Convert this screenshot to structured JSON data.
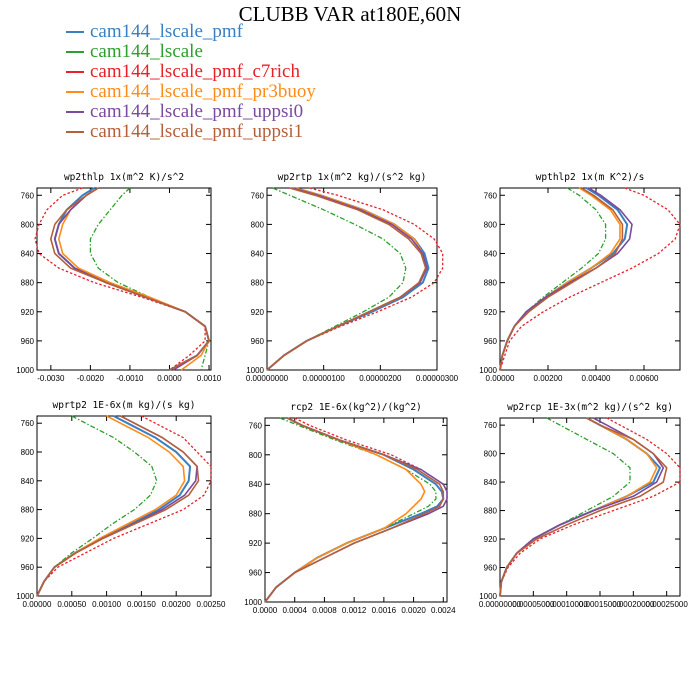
{
  "title": "CLUBB VAR at180E,60N",
  "legend": [
    {
      "name": "cam144_lscale_pmf",
      "color": "#3a80c0"
    },
    {
      "name": "cam144_lscale",
      "color": "#2ca02c"
    },
    {
      "name": "cam144_lscale_pmf_c7rich",
      "color": "#e8202a"
    },
    {
      "name": "cam144_lscale_pmf_pr3buoy",
      "color": "#ff8c1a"
    },
    {
      "name": "cam144_lscale_pmf_uppsi0",
      "color": "#7a4a9e"
    },
    {
      "name": "cam144_lscale_pmf_uppsi1",
      "color": "#b5603a"
    }
  ],
  "chart_data": [
    {
      "type": "line",
      "title": "wp2thlp  1x(m^2 K)/s^2",
      "ylim": [
        1000,
        750
      ],
      "yticks": [
        "760",
        "800",
        "840",
        "880",
        "920",
        "960",
        "1000"
      ],
      "xlim": [
        -0.00335,
        0.00105
      ],
      "xticks": [
        "-0.0030",
        "-0.0020",
        "-0.0010",
        "0.0000",
        "0.0010"
      ],
      "y": [
        750,
        760,
        780,
        800,
        820,
        840,
        860,
        880,
        900,
        920,
        940,
        960,
        980,
        1000
      ],
      "series": [
        {
          "values": [
            -0.0019,
            -0.0022,
            -0.0026,
            -0.0028,
            -0.0029,
            -0.0028,
            -0.0024,
            -0.0016,
            -0.0006,
            0.0004,
            0.0009,
            0.001,
            0.0007,
            0.0
          ]
        },
        {
          "values": [
            -0.001,
            -0.0012,
            -0.0015,
            -0.0018,
            -0.002,
            -0.002,
            -0.0018,
            -0.0013,
            -0.0005,
            0.0004,
            0.0009,
            0.001,
            0.0009,
            0.0008
          ]
        },
        {
          "values": [
            -0.0022,
            -0.0027,
            -0.0031,
            -0.0033,
            -0.0034,
            -0.0033,
            -0.0028,
            -0.0019,
            -0.0007,
            0.0004,
            0.0009,
            0.0009,
            0.0005,
            0.0
          ]
        },
        {
          "values": [
            -0.0018,
            -0.0021,
            -0.0025,
            -0.0027,
            -0.0028,
            -0.0027,
            -0.0023,
            -0.0015,
            -0.0005,
            0.0004,
            0.0009,
            0.001,
            0.0008,
            0.0003
          ]
        },
        {
          "values": [
            -0.0018,
            -0.0021,
            -0.0025,
            -0.0028,
            -0.0029,
            -0.0028,
            -0.0024,
            -0.0016,
            -0.0006,
            0.0004,
            0.0009,
            0.001,
            0.0007,
            0.0001
          ]
        },
        {
          "values": [
            -0.0018,
            -0.0021,
            -0.0026,
            -0.0029,
            -0.003,
            -0.0029,
            -0.0025,
            -0.0016,
            -0.0006,
            0.0004,
            0.0009,
            0.001,
            0.0007,
            0.0
          ]
        }
      ]
    },
    {
      "type": "line",
      "title": "wp2rtp  1x(m^2 kg)/(s^2 kg)",
      "ylim": [
        1000,
        750
      ],
      "yticks": [
        "760",
        "800",
        "840",
        "880",
        "920",
        "960",
        "1000"
      ],
      "xlim": [
        0,
        3e-06
      ],
      "xticks": [
        "0.00000000",
        "0.00000100",
        "0.00000200",
        "0.00000300"
      ],
      "y": [
        750,
        760,
        780,
        800,
        820,
        840,
        860,
        880,
        900,
        920,
        940,
        960,
        980,
        1000
      ],
      "series": [
        {
          "values": [
            5e-07,
            9.5e-07,
            1.7e-06,
            2.25e-06,
            2.6e-06,
            2.78e-06,
            2.85e-06,
            2.75e-06,
            2.4e-06,
            1.85e-06,
            1.25e-06,
            7e-07,
            3e-07,
            0.0
          ]
        },
        {
          "values": [
            1e-07,
            4e-07,
            1e-06,
            1.55e-06,
            2.05e-06,
            2.35e-06,
            2.45e-06,
            2.4e-06,
            2.15e-06,
            1.7e-06,
            1.2e-06,
            7e-07,
            3e-07,
            0.0
          ]
        },
        {
          "values": [
            7.5e-07,
            1.25e-06,
            2.05e-06,
            2.6e-06,
            2.95e-06,
            3.1e-06,
            3.1e-06,
            2.95e-06,
            2.55e-06,
            1.95e-06,
            1.3e-06,
            7e-07,
            3e-07,
            0.0
          ]
        },
        {
          "values": [
            5e-07,
            9.5e-07,
            1.7e-06,
            2.25e-06,
            2.6e-06,
            2.75e-06,
            2.8e-06,
            2.7e-06,
            2.35e-06,
            1.8e-06,
            1.25e-06,
            7e-07,
            3e-07,
            0.0
          ]
        },
        {
          "values": [
            4.5e-07,
            9e-07,
            1.65e-06,
            2.2e-06,
            2.55e-06,
            2.75e-06,
            2.82e-06,
            2.7e-06,
            2.35e-06,
            1.8e-06,
            1.25e-06,
            7e-07,
            3e-07,
            0.0
          ]
        },
        {
          "values": [
            4e-07,
            8.5e-07,
            1.6e-06,
            2.15e-06,
            2.5e-06,
            2.72e-06,
            2.8e-06,
            2.68e-06,
            2.35e-06,
            1.8e-06,
            1.25e-06,
            7e-07,
            3e-07,
            0.0
          ]
        }
      ]
    },
    {
      "type": "line",
      "title": "wpthlp2  1x(m K^2)/s",
      "ylim": [
        1000,
        750
      ],
      "yticks": [
        "760",
        "800",
        "840",
        "880",
        "920",
        "960",
        "1000"
      ],
      "xlim": [
        0,
        0.0075
      ],
      "xticks": [
        "0.00000",
        "0.00200",
        "0.00400",
        "0.00600"
      ],
      "y": [
        750,
        760,
        780,
        800,
        820,
        840,
        860,
        880,
        900,
        920,
        940,
        960,
        980,
        1000
      ],
      "series": [
        {
          "values": [
            0.0036,
            0.0041,
            0.0049,
            0.0053,
            0.0052,
            0.0047,
            0.0038,
            0.0028,
            0.0019,
            0.0011,
            0.0006,
            0.0003,
            0.0001,
            0.0
          ]
        },
        {
          "values": [
            0.0028,
            0.0033,
            0.004,
            0.0044,
            0.0044,
            0.0041,
            0.0034,
            0.0026,
            0.0018,
            0.0011,
            0.0006,
            0.0003,
            0.0001,
            0.0
          ]
        },
        {
          "values": [
            0.0052,
            0.006,
            0.007,
            0.0075,
            0.0073,
            0.0066,
            0.0055,
            0.0042,
            0.0029,
            0.0018,
            0.0009,
            0.0004,
            0.0002,
            0.0
          ]
        },
        {
          "values": [
            0.0033,
            0.0038,
            0.0046,
            0.005,
            0.005,
            0.0046,
            0.0038,
            0.0028,
            0.0019,
            0.0011,
            0.0006,
            0.0003,
            0.0001,
            0.0
          ]
        },
        {
          "values": [
            0.0037,
            0.0042,
            0.005,
            0.0055,
            0.0054,
            0.0049,
            0.004,
            0.0029,
            0.0019,
            0.0011,
            0.0006,
            0.0003,
            0.0001,
            0.0
          ]
        },
        {
          "values": [
            0.0034,
            0.0039,
            0.0047,
            0.0051,
            0.0051,
            0.0048,
            0.004,
            0.003,
            0.002,
            0.0012,
            0.0006,
            0.0003,
            0.0001,
            0.0
          ]
        }
      ]
    },
    {
      "type": "line",
      "title": "wprtp2  1E-6x(m kg)/(s kg)",
      "ylim": [
        1000,
        750
      ],
      "yticks": [
        "760",
        "800",
        "840",
        "880",
        "920",
        "960",
        "1000"
      ],
      "xlim": [
        0,
        0.0025
      ],
      "xticks": [
        "0.00000",
        "0.00050",
        "0.00100",
        "0.00150",
        "0.00200",
        "0.00250"
      ],
      "y": [
        750,
        760,
        780,
        800,
        820,
        840,
        860,
        880,
        900,
        920,
        940,
        960,
        980,
        1000
      ],
      "series": [
        {
          "values": [
            0.0011,
            0.0013,
            0.0017,
            0.002,
            0.0022,
            0.00218,
            0.00205,
            0.00175,
            0.00135,
            0.00092,
            0.00055,
            0.00025,
            0.0001,
            0.0
          ]
        },
        {
          "values": [
            0.0005,
            0.0007,
            0.0011,
            0.0014,
            0.00165,
            0.00172,
            0.00163,
            0.0014,
            0.00108,
            0.0008,
            0.0005,
            0.00025,
            0.0001,
            0.0
          ]
        },
        {
          "values": [
            0.0015,
            0.0017,
            0.0021,
            0.0023,
            0.0025,
            0.0025,
            0.0024,
            0.0021,
            0.0016,
            0.0011,
            0.0007,
            0.0003,
            0.0001,
            0.0
          ]
        },
        {
          "values": [
            0.001,
            0.0012,
            0.0016,
            0.0019,
            0.0021,
            0.00212,
            0.002,
            0.0017,
            0.0013,
            0.0009,
            0.00055,
            0.00025,
            0.0001,
            0.0
          ]
        },
        {
          "values": [
            0.0012,
            0.0014,
            0.0018,
            0.0021,
            0.0023,
            0.00228,
            0.00212,
            0.0018,
            0.00138,
            0.00094,
            0.00056,
            0.00025,
            0.0001,
            0.0
          ]
        },
        {
          "values": [
            0.0012,
            0.0014,
            0.0018,
            0.0021,
            0.0023,
            0.00232,
            0.00218,
            0.00185,
            0.0014,
            0.00095,
            0.00056,
            0.00025,
            0.0001,
            0.0
          ]
        }
      ]
    },
    {
      "type": "line",
      "title": "rcp2  1E-6x(kg^2)/(kg^2)",
      "ylim": [
        1000,
        750
      ],
      "yticks": [
        "760",
        "800",
        "840",
        "880",
        "920",
        "960",
        "1000"
      ],
      "xlim": [
        0,
        0.00245
      ],
      "xticks": [
        "0.0000",
        "0.0004",
        "0.0008",
        "0.0012",
        "0.0016",
        "0.0020",
        "0.0024"
      ],
      "y": [
        750,
        760,
        780,
        800,
        820,
        840,
        850,
        860,
        870,
        880,
        900,
        920,
        940,
        960,
        980,
        1000
      ],
      "series": [
        {
          "values": [
            0.0003,
            0.0005,
            0.001,
            0.0016,
            0.002,
            0.0023,
            0.00238,
            0.0024,
            0.00232,
            0.0021,
            0.0016,
            0.0011,
            0.0007,
            0.0004,
            0.00015,
            0.0
          ]
        },
        {
          "values": [
            0.0002,
            0.00045,
            0.00095,
            0.0015,
            0.0019,
            0.00222,
            0.0023,
            0.0023,
            0.0022,
            0.002,
            0.0016,
            0.0011,
            0.0007,
            0.0004,
            0.00015,
            0.0
          ]
        },
        {
          "values": [
            0.0004,
            0.0006,
            0.0011,
            0.0017,
            0.0021,
            0.0024,
            0.00245,
            0.00245,
            0.0024,
            0.0022,
            0.0017,
            0.0012,
            0.0008,
            0.0004,
            0.00015,
            0.0
          ]
        },
        {
          "values": [
            0.0003,
            0.0005,
            0.001,
            0.0015,
            0.0019,
            0.0021,
            0.00215,
            0.0021,
            0.002,
            0.0019,
            0.0016,
            0.0011,
            0.0007,
            0.0004,
            0.00015,
            0.0
          ]
        },
        {
          "values": [
            0.0003,
            0.0005,
            0.001,
            0.0016,
            0.0021,
            0.0024,
            0.00245,
            0.00245,
            0.0024,
            0.0022,
            0.0017,
            0.0012,
            0.0008,
            0.0004,
            0.00015,
            0.0
          ]
        },
        {
          "values": [
            0.0003,
            0.0005,
            0.001,
            0.0016,
            0.00205,
            0.00235,
            0.0024,
            0.0024,
            0.00235,
            0.00215,
            0.0017,
            0.0012,
            0.0008,
            0.0004,
            0.00015,
            0.0
          ]
        }
      ]
    },
    {
      "type": "line",
      "title": "wp2rcp  1E-3x(m^2 kg)/(s^2 kg)",
      "ylim": [
        1000,
        750
      ],
      "yticks": [
        "760",
        "800",
        "840",
        "880",
        "920",
        "960",
        "1000"
      ],
      "xlim": [
        0,
        0.00027
      ],
      "xticks": [
        "0.00000000",
        "0.00005000",
        "0.00010000",
        "0.00015000",
        "0.00020000",
        "0.00025000"
      ],
      "y": [
        750,
        760,
        780,
        800,
        820,
        840,
        860,
        880,
        900,
        920,
        940,
        960,
        980,
        1000
      ],
      "series": [
        {
          "values": [
            0.00013,
            0.00015,
            0.00019,
            0.00022,
            0.00024,
            0.00023,
            0.00019,
            0.00014,
            9e-05,
            5e-05,
            2.5e-05,
            1e-05,
            2e-06,
            0.0
          ]
        },
        {
          "values": [
            7e-05,
            9e-05,
            0.00013,
            0.00017,
            0.000195,
            0.000195,
            0.00017,
            0.00013,
            9e-05,
            5e-05,
            2.5e-05,
            1e-05,
            2e-06,
            0.0
          ]
        },
        {
          "values": [
            0.00016,
            0.00018,
            0.00022,
            0.00025,
            0.00027,
            0.00027,
            0.00023,
            0.00017,
            0.00011,
            6e-05,
            3e-05,
            1.2e-05,
            2e-06,
            0.0
          ]
        },
        {
          "values": [
            0.00013,
            0.00015,
            0.00019,
            0.00022,
            0.000235,
            0.000225,
            0.00019,
            0.00014,
            9e-05,
            5e-05,
            2.5e-05,
            1e-05,
            2e-06,
            0.0
          ]
        },
        {
          "values": [
            0.00014,
            0.00016,
            0.0002,
            0.00023,
            0.000245,
            0.000235,
            0.0002,
            0.00014,
            9e-05,
            5e-05,
            2.5e-05,
            1e-05,
            2e-06,
            0.0
          ]
        },
        {
          "values": [
            0.00013,
            0.00015,
            0.0002,
            0.00023,
            0.00025,
            0.000245,
            0.00021,
            0.00015,
            0.0001,
            5.5e-05,
            2.5e-05,
            1e-05,
            2e-06,
            0.0
          ]
        }
      ]
    }
  ]
}
